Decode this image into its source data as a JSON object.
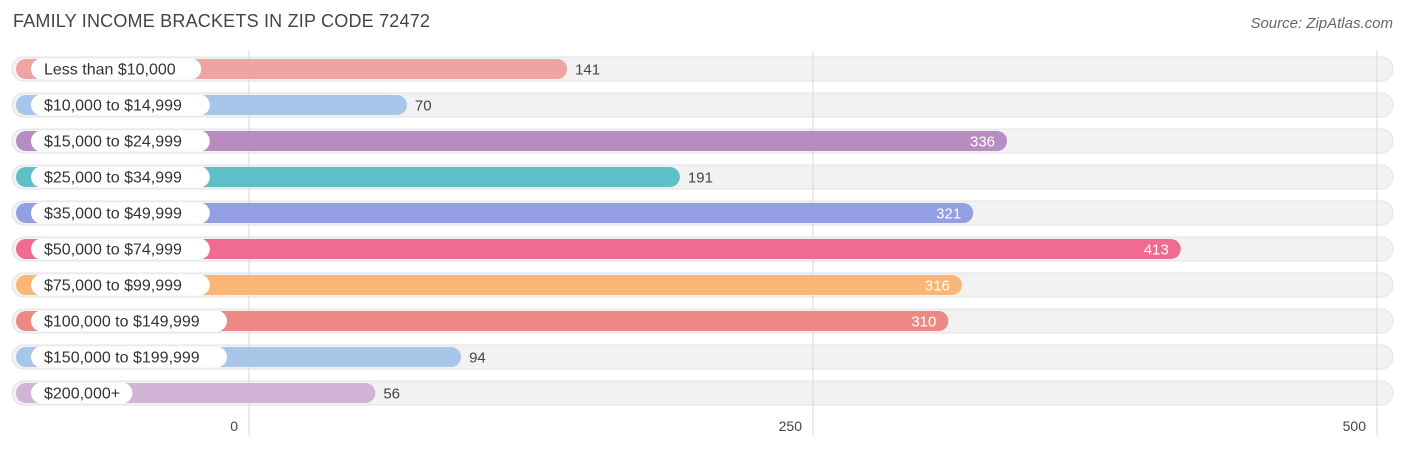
{
  "header": {
    "title": "FAMILY INCOME BRACKETS IN ZIP CODE 72472",
    "source": "Source: ZipAtlas.com"
  },
  "chart_data": {
    "type": "bar",
    "orientation": "horizontal",
    "title": "FAMILY INCOME BRACKETS IN ZIP CODE 72472",
    "categories": [
      "Less than $10,000",
      "$10,000 to $14,999",
      "$15,000 to $24,999",
      "$25,000 to $34,999",
      "$35,000 to $49,999",
      "$50,000 to $74,999",
      "$75,000 to $99,999",
      "$100,000 to $149,999",
      "$150,000 to $199,999",
      "$200,000+"
    ],
    "values": [
      141,
      70,
      336,
      191,
      321,
      413,
      316,
      310,
      94,
      56
    ],
    "colors": [
      "#f0a3a3",
      "#a8c6ea",
      "#b88cc0",
      "#5fbfc6",
      "#929fe3",
      "#f06a93",
      "#fbb575",
      "#ec8985",
      "#a8c6ea",
      "#d2b4d6"
    ],
    "value_label_inside": [
      false,
      false,
      true,
      false,
      true,
      true,
      true,
      true,
      false,
      false
    ],
    "xlim": [
      0,
      500
    ],
    "xticks": [
      0,
      250,
      500
    ],
    "grid": true
  }
}
